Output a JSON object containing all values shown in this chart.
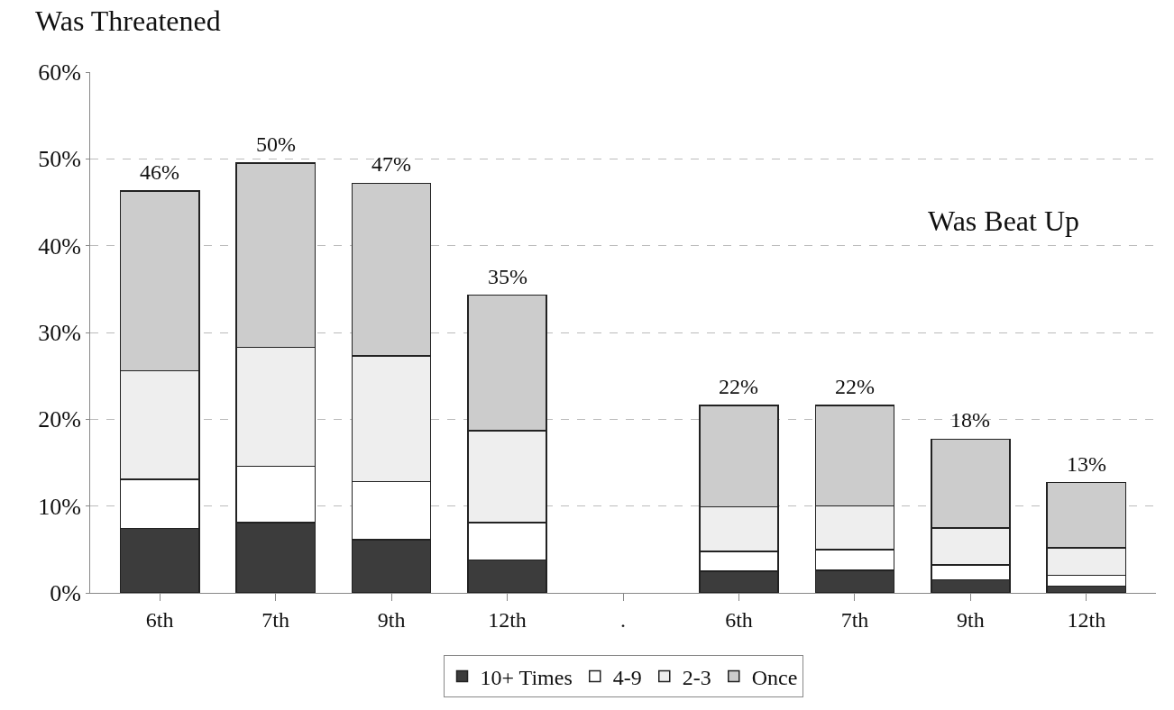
{
  "chart_data": {
    "type": "bar",
    "title": "Was Threatened",
    "annotations": [
      "Was Beat Up"
    ],
    "stacked": true,
    "categories": [
      "6th",
      "7th",
      "9th",
      "12th",
      ".",
      "6th",
      "7th",
      "9th",
      "12th"
    ],
    "series": [
      {
        "name": "10+ Times",
        "color": "#3c3c3c",
        "values": [
          7.4,
          8.1,
          6.1,
          3.8,
          null,
          2.5,
          2.6,
          1.5,
          0.8
        ]
      },
      {
        "name": "4-9",
        "color": "#ffffff",
        "values": [
          5.7,
          6.5,
          6.7,
          4.3,
          null,
          2.3,
          2.4,
          1.7,
          1.2
        ]
      },
      {
        "name": "2-3",
        "color": "#eeeeee",
        "values": [
          12.5,
          13.7,
          14.5,
          10.6,
          null,
          5.1,
          5.0,
          4.3,
          3.2
        ]
      },
      {
        "name": "Once",
        "color": "#cccccc",
        "values": [
          20.7,
          21.2,
          19.9,
          15.6,
          null,
          11.7,
          11.6,
          10.2,
          7.5
        ]
      }
    ],
    "totals": [
      "46%",
      "50%",
      "47%",
      "35%",
      null,
      "22%",
      "22%",
      "18%",
      "13%"
    ],
    "ylim": [
      0,
      60
    ],
    "yticks": [
      {
        "value": 0,
        "label": "0%"
      },
      {
        "value": 10,
        "label": "10%"
      },
      {
        "value": 20,
        "label": "20%"
      },
      {
        "value": 30,
        "label": "30%"
      },
      {
        "value": 40,
        "label": "40%"
      },
      {
        "value": 50,
        "label": "50%"
      },
      {
        "value": 60,
        "label": "60%"
      }
    ],
    "grid": "y",
    "legend": "bottom"
  }
}
